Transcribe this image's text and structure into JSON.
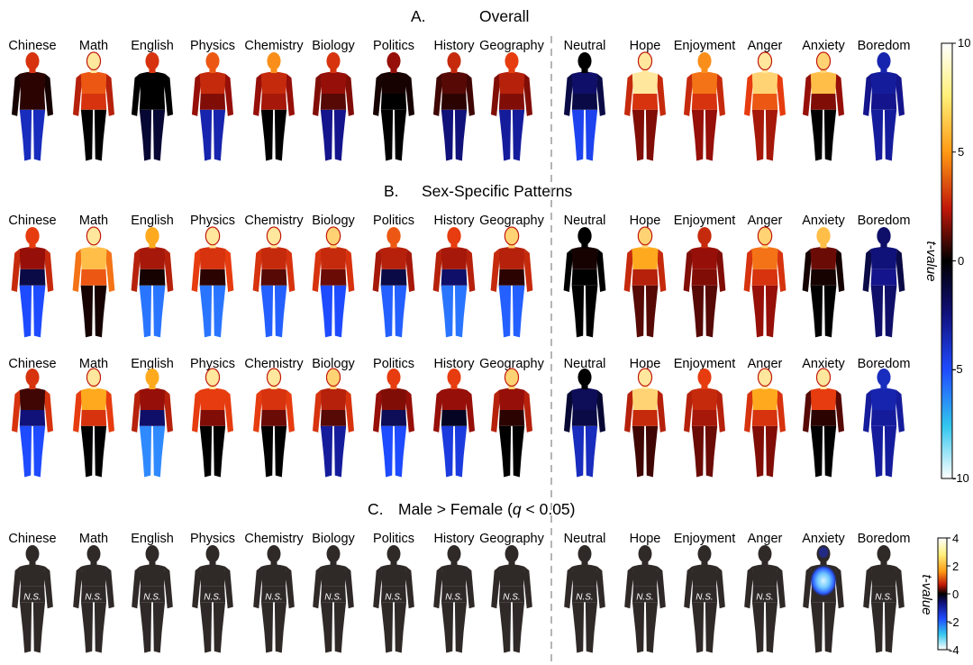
{
  "subjects": [
    "Chinese",
    "Math",
    "English",
    "Physics",
    "Chemistry",
    "Biology",
    "Politics",
    "History",
    "Geography"
  ],
  "emotions": [
    "Neutral",
    "Hope",
    "Enjoyment",
    "Anger",
    "Anxiety",
    "Boredom"
  ],
  "sections": {
    "a": {
      "letter": "A.",
      "title": "Overall"
    },
    "b": {
      "letter": "B.",
      "title": "Sex-Specific Patterns"
    },
    "c": {
      "letter": "C.",
      "title_prefix": "Male > Female (",
      "title_q": "q",
      "title_suffix": " < 0.05)"
    }
  },
  "ns_label": "N.S.",
  "colorbar_main": {
    "label": "t-value",
    "ticks": [
      "10",
      "5",
      "0",
      "-5",
      "-10"
    ]
  },
  "colorbar_diff": {
    "label": "t-value",
    "ticks": [
      "4",
      "2",
      "0",
      "-2",
      "-4"
    ]
  },
  "colors": {
    "silhouette_black": "#000000",
    "silhouette_gray": "#2f2927",
    "hot_mid": "#d4200c",
    "hot_high": "#ffd23a",
    "cool": "#1f4bff"
  },
  "body_maps": {
    "overall": [
      {
        "head": 0.55,
        "chest": 0.1,
        "abdomen": 0.1,
        "arms": 0.05,
        "legs": -0.55
      },
      {
        "head": 0.95,
        "chest": 0.65,
        "abdomen": 0.55,
        "arms": 0.45,
        "legs": 0.0
      },
      {
        "head": 0.55,
        "chest": 0.0,
        "abdomen": 0.0,
        "arms": 0.0,
        "legs": -0.15
      },
      {
        "head": 0.65,
        "chest": 0.5,
        "abdomen": 0.3,
        "arms": 0.35,
        "legs": -0.5
      },
      {
        "head": 0.75,
        "chest": 0.5,
        "abdomen": 0.4,
        "arms": 0.35,
        "legs": 0.0
      },
      {
        "head": 0.55,
        "chest": 0.35,
        "abdomen": 0.2,
        "arms": 0.3,
        "legs": -0.4
      },
      {
        "head": 0.35,
        "chest": 0.05,
        "abdomen": 0.0,
        "arms": 0.05,
        "legs": 0.0
      },
      {
        "head": 0.5,
        "chest": 0.2,
        "abdomen": 0.1,
        "arms": 0.15,
        "legs": -0.35
      },
      {
        "head": 0.6,
        "chest": 0.45,
        "abdomen": 0.3,
        "arms": 0.3,
        "legs": -0.45
      },
      {
        "head": 0.0,
        "chest": -0.3,
        "abdomen": -0.2,
        "arms": -0.2,
        "legs": -0.7
      },
      {
        "head": 0.95,
        "chest": 0.95,
        "abdomen": 0.55,
        "arms": 0.5,
        "legs": 0.3
      },
      {
        "head": 0.75,
        "chest": 0.7,
        "abdomen": 0.55,
        "arms": 0.5,
        "legs": 0.35
      },
      {
        "head": 0.95,
        "chest": 0.9,
        "abdomen": 0.65,
        "arms": 0.6,
        "legs": 0.4
      },
      {
        "head": 0.9,
        "chest": 0.85,
        "abdomen": 0.3,
        "arms": 0.35,
        "legs": 0.0
      },
      {
        "head": -0.5,
        "chest": -0.45,
        "abdomen": -0.4,
        "arms": -0.4,
        "legs": -0.45
      }
    ],
    "sex_row1": [
      {
        "head": 0.6,
        "chest": 0.35,
        "abdomen": -0.2,
        "arms": 0.5,
        "legs": -0.75
      },
      {
        "head": 0.95,
        "chest": 0.85,
        "abdomen": 0.65,
        "arms": 0.7,
        "legs": 0.05
      },
      {
        "head": 0.8,
        "chest": 0.4,
        "abdomen": 0.05,
        "arms": 0.45,
        "legs": -0.85
      },
      {
        "head": 0.95,
        "chest": 0.55,
        "abdomen": 0.1,
        "arms": 0.6,
        "legs": -0.85
      },
      {
        "head": 0.95,
        "chest": 0.5,
        "abdomen": 0.2,
        "arms": 0.55,
        "legs": -0.8
      },
      {
        "head": 0.9,
        "chest": 0.5,
        "abdomen": 0.25,
        "arms": 0.55,
        "legs": -0.75
      },
      {
        "head": 0.65,
        "chest": 0.45,
        "abdomen": -0.2,
        "arms": 0.4,
        "legs": -0.8
      },
      {
        "head": 0.6,
        "chest": 0.4,
        "abdomen": -0.3,
        "arms": 0.45,
        "legs": -0.85
      },
      {
        "head": 0.9,
        "chest": 0.45,
        "abdomen": 0.1,
        "arms": 0.5,
        "legs": -0.8
      },
      {
        "head": 0.0,
        "chest": 0.05,
        "abdomen": 0.0,
        "arms": 0.0,
        "legs": 0.0
      },
      {
        "head": 0.9,
        "chest": 0.8,
        "abdomen": 0.45,
        "arms": 0.5,
        "legs": 0.2
      },
      {
        "head": 0.5,
        "chest": 0.35,
        "abdomen": 0.3,
        "arms": 0.3,
        "legs": 0.2
      },
      {
        "head": 0.9,
        "chest": 0.7,
        "abdomen": 0.55,
        "arms": 0.55,
        "legs": 0.35
      },
      {
        "head": 0.85,
        "chest": 0.25,
        "abdomen": 0.05,
        "arms": 0.05,
        "legs": 0.0
      },
      {
        "head": -0.3,
        "chest": -0.35,
        "abdomen": -0.4,
        "arms": -0.2,
        "legs": -0.3
      }
    ],
    "sex_row2": [
      {
        "head": 0.55,
        "chest": 0.15,
        "abdomen": -0.35,
        "arms": 0.55,
        "legs": -0.75
      },
      {
        "head": 0.95,
        "chest": 0.8,
        "abdomen": 0.55,
        "arms": 0.6,
        "legs": 0.0
      },
      {
        "head": 0.8,
        "chest": 0.35,
        "abdomen": -0.3,
        "arms": 0.45,
        "legs": -0.9
      },
      {
        "head": 0.95,
        "chest": 0.6,
        "abdomen": 0.3,
        "arms": 0.6,
        "legs": 0.0
      },
      {
        "head": 0.95,
        "chest": 0.55,
        "abdomen": 0.25,
        "arms": 0.6,
        "legs": 0.0
      },
      {
        "head": 0.9,
        "chest": 0.45,
        "abdomen": 0.2,
        "arms": 0.55,
        "legs": -0.45
      },
      {
        "head": 0.6,
        "chest": 0.3,
        "abdomen": -0.25,
        "arms": 0.35,
        "legs": -0.75
      },
      {
        "head": 0.6,
        "chest": 0.35,
        "abdomen": -0.1,
        "arms": 0.35,
        "legs": -0.65
      },
      {
        "head": 0.9,
        "chest": 0.35,
        "abdomen": 0.1,
        "arms": 0.45,
        "legs": 0.0
      },
      {
        "head": 0.0,
        "chest": -0.25,
        "abdomen": -0.2,
        "arms": -0.15,
        "legs": -0.55
      },
      {
        "head": 0.95,
        "chest": 0.9,
        "abdomen": 0.5,
        "arms": 0.45,
        "legs": 0.15
      },
      {
        "head": 0.6,
        "chest": 0.5,
        "abdomen": 0.4,
        "arms": 0.45,
        "legs": 0.25
      },
      {
        "head": 0.95,
        "chest": 0.8,
        "abdomen": 0.55,
        "arms": 0.55,
        "legs": 0.3
      },
      {
        "head": 0.95,
        "chest": 0.6,
        "abdomen": 0.1,
        "arms": 0.2,
        "legs": 0.0
      },
      {
        "head": -0.55,
        "chest": -0.5,
        "abdomen": -0.45,
        "arms": -0.45,
        "legs": -0.45
      }
    ],
    "male_gt_female_significant_index": 13
  }
}
